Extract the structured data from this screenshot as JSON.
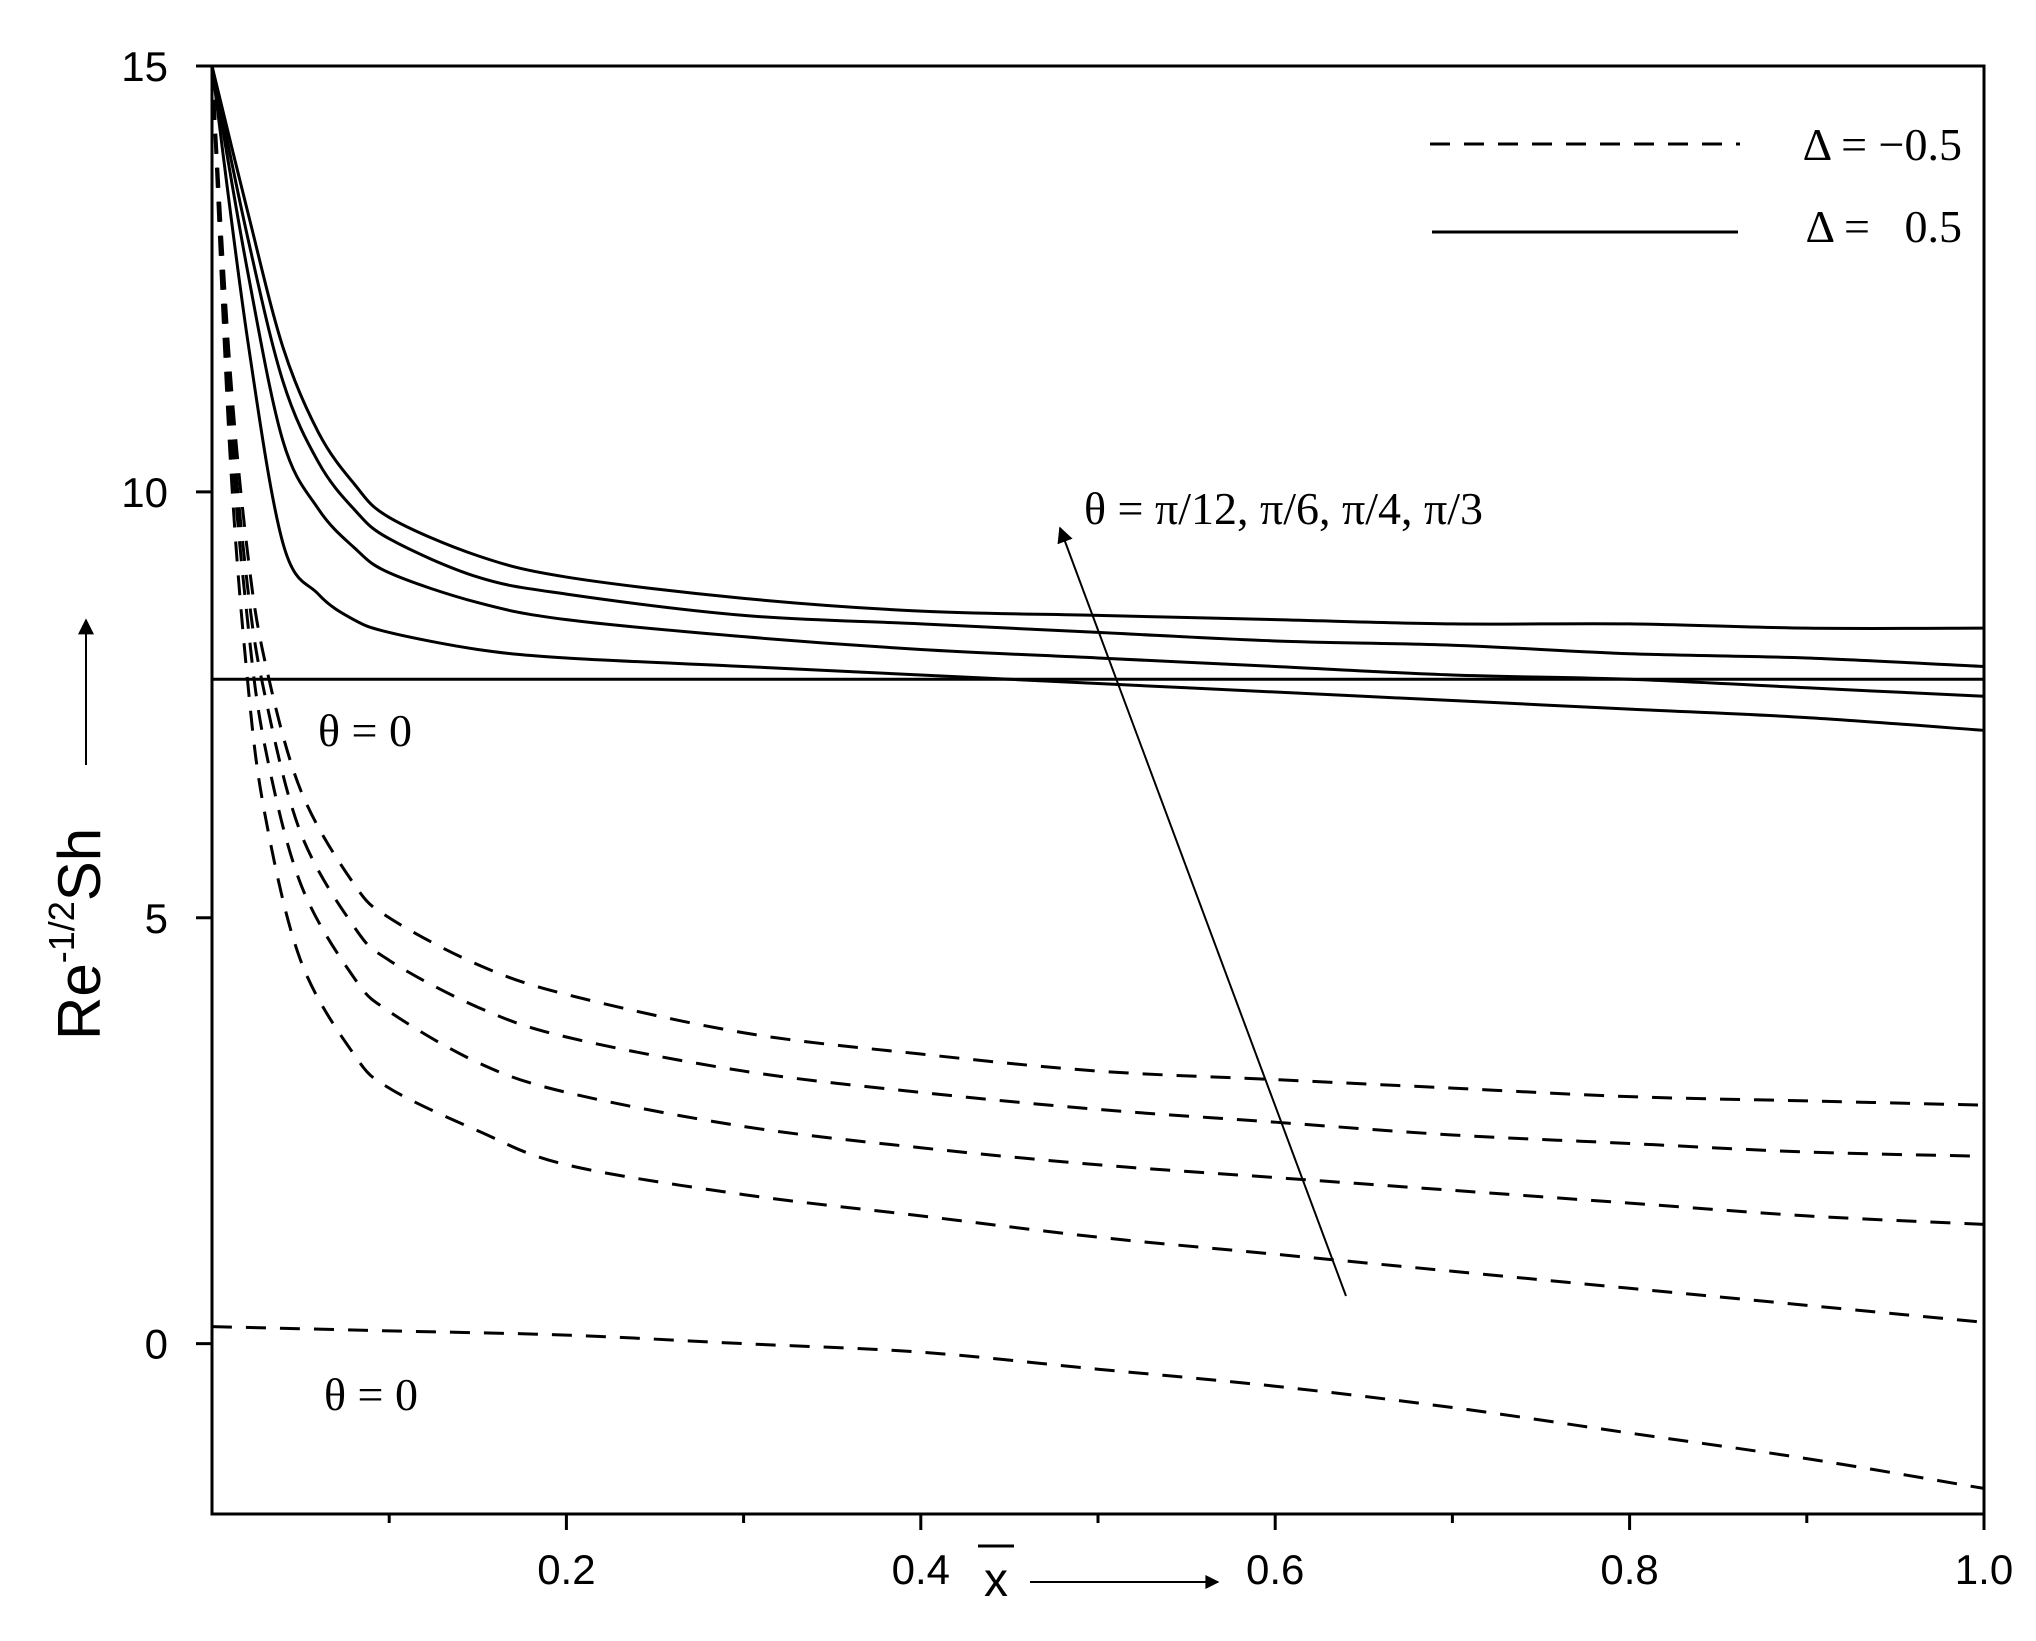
{
  "chart_data": {
    "type": "line",
    "title": "",
    "xlabel": "x",
    "ylabel": "Re^-1/2 Sh",
    "ylabel_base": "Re",
    "ylabel_exp": "-1/2",
    "ylabel_tail": "Sh",
    "xlim": [
      0.0,
      1.0
    ],
    "ylim": [
      -2,
      15
    ],
    "x_ticks": [
      0.2,
      0.4,
      0.6,
      0.8,
      1.0
    ],
    "x_tick_labels": [
      "0.2",
      "0.4",
      "0.6",
      "0.8",
      "1.0"
    ],
    "x_minor_ticks": [
      0.1,
      0.3,
      0.5,
      0.7,
      0.9
    ],
    "y_ticks": [
      0,
      5,
      10,
      15
    ],
    "y_tick_labels": [
      "0",
      "5",
      "10",
      "15"
    ],
    "grid": false,
    "legend_position": "top-right",
    "legend": [
      {
        "label": "Δ = −0.5",
        "style": "dashed"
      },
      {
        "label": "Δ =   0.5",
        "style": "solid"
      }
    ],
    "annotations": {
      "theta_list": "θ = π/12, π/6, π/4, π/3",
      "theta_zero_solid": "θ = 0",
      "theta_zero_dashed": "θ = 0"
    },
    "series": [
      {
        "group": "solid",
        "style": "solid",
        "theta": "0",
        "x": [
          0.0,
          1.0
        ],
        "y": [
          7.8,
          7.8
        ]
      },
      {
        "group": "solid",
        "style": "solid",
        "theta": "π/12",
        "x": [
          0.0,
          0.02,
          0.04,
          0.06,
          0.08,
          0.1,
          0.15,
          0.2,
          0.3,
          0.4,
          0.5,
          0.6,
          0.7,
          0.8,
          0.9,
          1.0
        ],
        "y": [
          15.0,
          11.8,
          9.4,
          8.8,
          8.5,
          8.35,
          8.15,
          8.05,
          7.95,
          7.85,
          7.75,
          7.65,
          7.55,
          7.45,
          7.35,
          7.2
        ]
      },
      {
        "group": "solid",
        "style": "solid",
        "theta": "π/6",
        "x": [
          0.0,
          0.02,
          0.04,
          0.06,
          0.08,
          0.1,
          0.15,
          0.2,
          0.3,
          0.4,
          0.5,
          0.6,
          0.7,
          0.8,
          0.9,
          1.0
        ],
        "y": [
          15.0,
          12.6,
          10.6,
          9.8,
          9.35,
          9.05,
          8.7,
          8.5,
          8.3,
          8.15,
          8.05,
          7.95,
          7.85,
          7.8,
          7.7,
          7.6
        ]
      },
      {
        "group": "solid",
        "style": "solid",
        "theta": "π/4",
        "x": [
          0.0,
          0.02,
          0.04,
          0.06,
          0.08,
          0.1,
          0.15,
          0.2,
          0.3,
          0.4,
          0.5,
          0.6,
          0.7,
          0.8,
          0.9,
          1.0
        ],
        "y": [
          15.0,
          13.0,
          11.3,
          10.35,
          9.8,
          9.45,
          9.0,
          8.8,
          8.55,
          8.45,
          8.35,
          8.25,
          8.2,
          8.1,
          8.05,
          7.95
        ]
      },
      {
        "group": "solid",
        "style": "solid",
        "theta": "π/3",
        "x": [
          0.0,
          0.02,
          0.04,
          0.06,
          0.08,
          0.1,
          0.15,
          0.2,
          0.3,
          0.4,
          0.5,
          0.6,
          0.7,
          0.8,
          0.9,
          1.0
        ],
        "y": [
          15.0,
          13.3,
          11.7,
          10.7,
          10.1,
          9.7,
          9.25,
          9.0,
          8.75,
          8.6,
          8.55,
          8.5,
          8.45,
          8.45,
          8.4,
          8.4
        ]
      },
      {
        "group": "dashed",
        "style": "dashed",
        "theta": "0",
        "x": [
          0.0,
          0.1,
          0.2,
          0.3,
          0.4,
          0.5,
          0.6,
          0.7,
          0.8,
          0.9,
          1.0
        ],
        "y": [
          0.2,
          0.15,
          0.1,
          0.0,
          -0.1,
          -0.3,
          -0.5,
          -0.75,
          -1.05,
          -1.35,
          -1.7
        ]
      },
      {
        "group": "dashed",
        "style": "dashed",
        "theta": "π/12",
        "x": [
          0.0,
          0.01,
          0.02,
          0.03,
          0.05,
          0.08,
          0.1,
          0.15,
          0.2,
          0.3,
          0.4,
          0.5,
          0.6,
          0.7,
          0.8,
          0.9,
          1.0
        ],
        "y": [
          15.0,
          10.5,
          7.8,
          6.2,
          4.5,
          3.4,
          3.0,
          2.5,
          2.1,
          1.75,
          1.5,
          1.25,
          1.05,
          0.85,
          0.65,
          0.45,
          0.25
        ]
      },
      {
        "group": "dashed",
        "style": "dashed",
        "theta": "π/6",
        "x": [
          0.0,
          0.01,
          0.02,
          0.03,
          0.05,
          0.08,
          0.1,
          0.15,
          0.2,
          0.3,
          0.4,
          0.5,
          0.6,
          0.7,
          0.8,
          0.9,
          1.0
        ],
        "y": [
          15.0,
          10.9,
          8.5,
          7.0,
          5.4,
          4.3,
          3.9,
          3.3,
          2.95,
          2.55,
          2.3,
          2.1,
          1.95,
          1.8,
          1.65,
          1.5,
          1.4
        ]
      },
      {
        "group": "dashed",
        "style": "dashed",
        "theta": "π/4",
        "x": [
          0.0,
          0.01,
          0.02,
          0.03,
          0.05,
          0.08,
          0.1,
          0.15,
          0.2,
          0.3,
          0.4,
          0.5,
          0.6,
          0.7,
          0.8,
          0.9,
          1.0
        ],
        "y": [
          15.0,
          11.2,
          8.9,
          7.6,
          6.0,
          4.9,
          4.5,
          3.95,
          3.6,
          3.2,
          2.95,
          2.75,
          2.6,
          2.45,
          2.35,
          2.25,
          2.2
        ]
      },
      {
        "group": "dashed",
        "style": "dashed",
        "theta": "π/3",
        "x": [
          0.0,
          0.01,
          0.02,
          0.03,
          0.05,
          0.08,
          0.1,
          0.15,
          0.2,
          0.3,
          0.4,
          0.5,
          0.6,
          0.7,
          0.8,
          0.9,
          1.0
        ],
        "y": [
          15.0,
          11.5,
          9.3,
          8.0,
          6.5,
          5.4,
          5.0,
          4.45,
          4.1,
          3.65,
          3.4,
          3.2,
          3.1,
          3.0,
          2.9,
          2.85,
          2.8
        ]
      }
    ]
  }
}
